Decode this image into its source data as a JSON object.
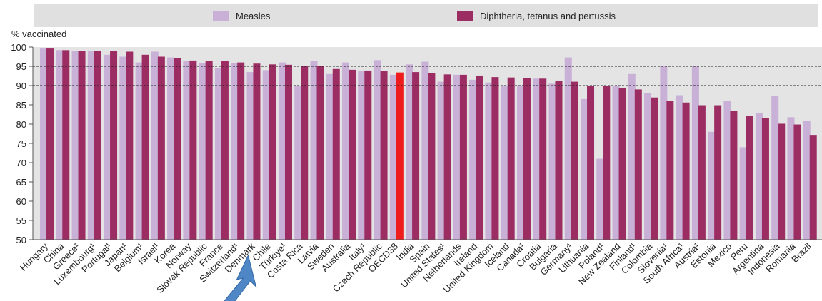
{
  "legend": {
    "items": [
      {
        "label": "Measles",
        "color": "#c9b0d6"
      },
      {
        "label": "Diphtheria, tetanus and pertussis",
        "color": "#9c2d63"
      }
    ]
  },
  "highlight_color": "#ee1c1c",
  "arrow_color": "#4f86c6",
  "arrow_target": "Denmark",
  "chart_data": {
    "type": "bar",
    "ylabel": "% vaccinated",
    "ylim": [
      50,
      100
    ],
    "yticks": [
      50,
      55,
      60,
      65,
      70,
      75,
      80,
      85,
      90,
      95,
      100
    ],
    "reference_lines": [
      90,
      95
    ],
    "grid": false,
    "legend_position": "top",
    "highlight": "OECD38",
    "categories": [
      "Hungary",
      "China",
      "Greece¹",
      "Luxembourg¹",
      "Portugal¹",
      "Japan¹",
      "Belgium¹",
      "Israel¹",
      "Korea",
      "Norway",
      "Slovak Republic",
      "France",
      "Switzerland¹",
      "Denmark",
      "Chile",
      "Türkiye¹",
      "Costa Rica",
      "Latvia",
      "Sweden",
      "Australia",
      "Italy¹",
      "Czech Republic",
      "OECD38",
      "India",
      "Spain",
      "United States¹",
      "Netherlands",
      "Ireland",
      "United Kingdom",
      "Iceland",
      "Canada¹",
      "Croatia",
      "Bulgaria",
      "Germany¹",
      "Lithuania",
      "Poland¹",
      "New Zealand",
      "Finland¹",
      "Colombia",
      "Slovenia¹",
      "South Africa¹",
      "Austria¹",
      "Estonia",
      "Mexico",
      "Peru",
      "Argentina",
      "Indonesia",
      "Romania",
      "Brazil"
    ],
    "series": [
      {
        "name": "Measles",
        "values": [
          99.8,
          99.2,
          99.0,
          99.0,
          98.0,
          97.5,
          96.0,
          98.8,
          97.3,
          96.4,
          95.8,
          94.5,
          95.8,
          93.5,
          94.0,
          96.0,
          90.0,
          96.3,
          93.0,
          96.0,
          93.8,
          96.6,
          92.8,
          95.5,
          96.2,
          91.0,
          92.8,
          91.5,
          90.8,
          90.0,
          90.0,
          91.8,
          90.5,
          97.3,
          86.5,
          71.0,
          90.0,
          93.0,
          88.0,
          95.0,
          87.5,
          95.0,
          78.0,
          86.0,
          74.0,
          82.8,
          87.3,
          81.8,
          80.8
        ]
      },
      {
        "name": "Diphtheria, tetanus and pertussis",
        "values": [
          99.8,
          99.2,
          99.0,
          99.0,
          99.0,
          98.8,
          98.0,
          97.5,
          97.2,
          96.5,
          96.4,
          96.3,
          96.0,
          95.7,
          95.5,
          95.4,
          95.1,
          95.0,
          94.3,
          94.1,
          93.9,
          93.7,
          93.4,
          93.5,
          93.2,
          92.9,
          92.8,
          92.6,
          92.2,
          92.1,
          91.9,
          91.8,
          91.3,
          91.0,
          89.9,
          89.9,
          89.3,
          89.0,
          86.9,
          86.0,
          85.6,
          84.9,
          84.9,
          83.4,
          82.2,
          81.6,
          80.1,
          79.9,
          77.2
        ]
      }
    ]
  }
}
